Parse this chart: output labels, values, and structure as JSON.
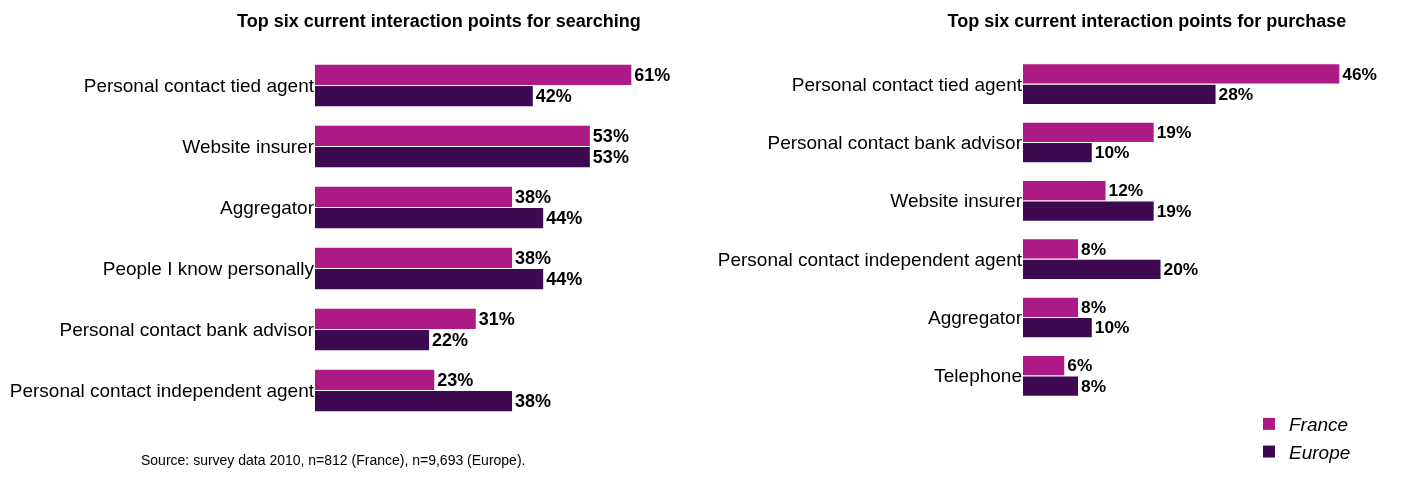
{
  "chart_data": [
    {
      "type": "bar",
      "orientation": "horizontal",
      "title": "Top six current interaction points for searching",
      "categories": [
        "Personal contact tied agent",
        "Website insurer",
        "Aggregator",
        "People I know personally",
        "Personal contact bank advisor",
        "Personal contact independent agent"
      ],
      "series": [
        {
          "color": "#ad1a85",
          "values": [
            61,
            53,
            38,
            38,
            31,
            23
          ],
          "value_labels": [
            "61%",
            "53%",
            "38%",
            "38%",
            "31%",
            "23%"
          ]
        },
        {
          "color": "#3d0a52",
          "values": [
            42,
            53,
            44,
            44,
            22,
            38
          ],
          "value_labels": [
            "42%",
            "53%",
            "44%",
            "44%",
            "22%",
            "38%"
          ]
        }
      ],
      "legend": false,
      "annotations": [
        "Source: survey data 2010, n=812 (France), n=9,693 (Europe)."
      ]
    },
    {
      "type": "bar",
      "orientation": "horizontal",
      "title": "Top six current interaction points for purchase",
      "categories": [
        "Personal contact tied agent",
        "Personal contact bank advisor",
        "Website insurer",
        "Personal contact independent agent",
        "Aggregator",
        "Telephone"
      ],
      "series": [
        {
          "name": "France",
          "color": "#ad1a85",
          "values": [
            46,
            19,
            12,
            8,
            8,
            6
          ],
          "value_labels": [
            "46%",
            "19%",
            "12%",
            "8%",
            "8%",
            "6%"
          ]
        },
        {
          "name": "Europe",
          "color": "#3d0a52",
          "values": [
            28,
            10,
            19,
            20,
            10,
            8
          ],
          "value_labels": [
            "28%",
            "10%",
            "19%",
            "20%",
            "10%",
            "8%"
          ]
        }
      ],
      "legend": "bottom right"
    }
  ]
}
